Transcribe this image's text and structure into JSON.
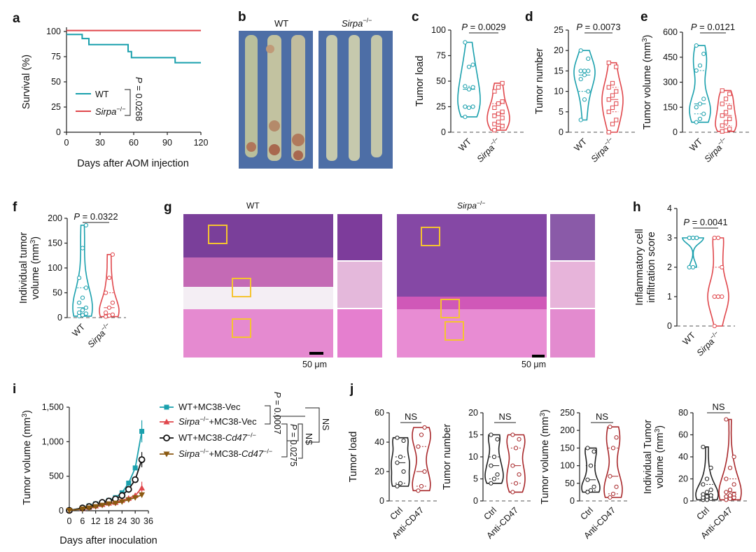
{
  "colors": {
    "wt": "#1aa0ad",
    "ko": "#e0474c",
    "ko_dark": "#a8282b",
    "mc38_vec_wt": "#1aa0ad",
    "mc38_vec_ko": "#e0474c",
    "cd47_wt": "#111111",
    "cd47_ko": "#8b5a12",
    "histo_box": "#f5c430"
  },
  "panels": {
    "a": {
      "letter": "a"
    },
    "b": {
      "letter": "b",
      "wt": "WT",
      "ko": "Sirpa",
      "sup": "−/−",
      "photo_bg": "#4a6fa8"
    },
    "c": {
      "letter": "c"
    },
    "d": {
      "letter": "d"
    },
    "e": {
      "letter": "e"
    },
    "f": {
      "letter": "f"
    },
    "g": {
      "letter": "g",
      "wt": "WT",
      "ko": "Sirpa",
      "sup": "−/−",
      "scale1": "50 μm",
      "scale2": "50 μm"
    },
    "h": {
      "letter": "h"
    },
    "i": {
      "letter": "i"
    },
    "j": {
      "letter": "j"
    }
  },
  "chart_data": [
    {
      "panel": "a",
      "type": "line",
      "xlabel": "Days after AOM injection",
      "ylabel": "Survival (%)",
      "xlim": [
        0,
        120
      ],
      "ylim": [
        0,
        100
      ],
      "xticks": [
        "0",
        "30",
        "60",
        "90",
        "120"
      ],
      "yticks": [
        "0",
        "25",
        "50",
        "75",
        "100"
      ],
      "series": [
        {
          "name": "WT",
          "color": "#1aa0ad",
          "steps": [
            [
              0,
              97
            ],
            [
              14,
              97
            ],
            [
              14,
              93
            ],
            [
              20,
              93
            ],
            [
              20,
              87
            ],
            [
              55,
              87
            ],
            [
              55,
              80
            ],
            [
              58,
              80
            ],
            [
              58,
              74
            ],
            [
              97,
              74
            ],
            [
              97,
              69
            ],
            [
              120,
              69
            ]
          ]
        },
        {
          "name": "Sirpa−/−",
          "color": "#e0474c",
          "steps": [
            [
              0,
              101
            ],
            [
              120,
              101
            ]
          ]
        }
      ],
      "stat": "P = 0.0268"
    },
    {
      "panel": "c",
      "type": "violin",
      "ylabel": "Tumor load",
      "ylim": [
        0,
        100
      ],
      "yticks": [
        "0",
        "25",
        "50",
        "75",
        "100"
      ],
      "categories": [
        "WT",
        "Sirpa−/−"
      ],
      "stat": "P = 0.0029",
      "series": [
        {
          "name": "WT",
          "values": [
            88,
            66,
            64,
            45,
            44,
            42,
            25,
            25,
            24,
            15
          ]
        },
        {
          "name": "Sirpa−/−",
          "values": [
            48,
            44,
            40,
            30,
            28,
            24,
            20,
            18,
            16,
            14,
            10,
            8,
            6,
            4,
            2
          ]
        }
      ]
    },
    {
      "panel": "d",
      "type": "violin",
      "ylabel": "Tumor number",
      "ylim": [
        0,
        25
      ],
      "yticks": [
        "0",
        "5",
        "10",
        "15",
        "20",
        "25"
      ],
      "categories": [
        "WT",
        "Sirpa−/−"
      ],
      "stat": "P = 0.0073",
      "series": [
        {
          "name": "WT",
          "values": [
            20,
            18,
            15,
            15,
            15,
            14,
            13,
            10,
            8,
            3
          ]
        },
        {
          "name": "Sirpa−/−",
          "values": [
            17,
            16,
            12,
            11,
            10,
            9,
            8,
            7,
            6,
            5,
            3,
            2,
            0
          ]
        }
      ]
    },
    {
      "panel": "e",
      "type": "violin",
      "ylabel": "Tumor volume (mm3)",
      "ylim": [
        0,
        600
      ],
      "yticks": [
        "0",
        "150",
        "300",
        "450",
        "600"
      ],
      "categories": [
        "WT",
        "Sirpa−/−"
      ],
      "stat": "P = 0.0121",
      "series": [
        {
          "name": "WT",
          "values": [
            520,
            470,
            400,
            370,
            200,
            170,
            150,
            110,
            80,
            60
          ]
        },
        {
          "name": "Sirpa−/−",
          "values": [
            250,
            230,
            200,
            170,
            150,
            120,
            100,
            80,
            60,
            40,
            20,
            10,
            5
          ]
        }
      ]
    },
    {
      "panel": "f",
      "type": "violin",
      "ylabel": "Individual tumor volume (mm3)",
      "ylim": [
        0,
        200
      ],
      "yticks": [
        "0",
        "50",
        "100",
        "150",
        "200"
      ],
      "categories": [
        "WT",
        "Sirpa−/−"
      ],
      "stat": "P = 0.0322",
      "series": [
        {
          "name": "WT",
          "values": [
            186,
            140,
            80,
            60,
            40,
            30,
            20,
            15,
            10,
            8,
            5,
            3
          ]
        },
        {
          "name": "Sirpa−/−",
          "values": [
            127,
            80,
            50,
            30,
            20,
            10,
            6,
            4,
            2
          ]
        }
      ]
    },
    {
      "panel": "h",
      "type": "violin",
      "ylabel": "Inflammatory cell infiltration score",
      "ylim": [
        0,
        4
      ],
      "yticks": [
        "0",
        "1",
        "2",
        "3",
        "4"
      ],
      "categories": [
        "WT",
        "Sirpa−/−"
      ],
      "stat": "P = 0.0041",
      "series": [
        {
          "name": "WT",
          "values": [
            3,
            3,
            3,
            3,
            3,
            3,
            2,
            2
          ]
        },
        {
          "name": "Sirpa−/−",
          "values": [
            3,
            3,
            2,
            1,
            1,
            1,
            1,
            0
          ]
        }
      ]
    },
    {
      "panel": "i",
      "type": "line",
      "xlabel": "Days after inoculation",
      "ylabel": "Tumor volume (mm3)",
      "xlim": [
        0,
        36
      ],
      "ylim": [
        0,
        1500
      ],
      "xticks": [
        "0",
        "6",
        "12",
        "18",
        "24",
        "30",
        "36"
      ],
      "yticks": [
        "0",
        "500",
        "1,000",
        "1,500"
      ],
      "x": [
        0,
        6,
        9,
        12,
        15,
        18,
        21,
        24,
        27,
        30,
        33
      ],
      "series": [
        {
          "name": "WT+MC38-Vec",
          "values": [
            5,
            40,
            70,
            100,
            120,
            150,
            190,
            260,
            400,
            620,
            1150
          ],
          "err": [
            5,
            10,
            12,
            15,
            20,
            25,
            30,
            40,
            60,
            120,
            160
          ]
        },
        {
          "name": "Sirpa−/−+MC38-Vec",
          "values": [
            5,
            30,
            50,
            70,
            90,
            110,
            120,
            150,
            180,
            220,
            330
          ],
          "err": [
            5,
            8,
            10,
            12,
            15,
            20,
            20,
            25,
            30,
            50,
            90
          ]
        },
        {
          "name": "WT+MC38-Cd47−/−",
          "values": [
            5,
            40,
            60,
            90,
            120,
            140,
            170,
            220,
            310,
            450,
            740
          ],
          "err": [
            5,
            10,
            12,
            15,
            20,
            25,
            30,
            40,
            60,
            90,
            110
          ]
        },
        {
          "name": "Sirpa−/−+MC38-Cd47−/−",
          "values": [
            5,
            25,
            40,
            60,
            80,
            100,
            110,
            130,
            160,
            190,
            230
          ],
          "err": [
            5,
            8,
            8,
            10,
            12,
            15,
            18,
            20,
            25,
            30,
            40
          ]
        }
      ],
      "legend_labels": [
        {
          "a": "WT+MC38-Vec",
          "i": "",
          "b": ""
        },
        {
          "a": "",
          "i": "Sirpa",
          "s": "−/−",
          "b": "+MC38-Vec"
        },
        {
          "a": "WT+MC38-",
          "i": "Cd47",
          "s": "−/−",
          "b": ""
        },
        {
          "a": "",
          "i": "Sirpa",
          "s": "−/−",
          "b": "+MC38-",
          "i2": "Cd47",
          "s2": "−/−"
        }
      ],
      "stats": [
        "P = 0.0007",
        "P = 0.0275",
        "NS",
        "NS"
      ]
    },
    {
      "panel": "j1",
      "type": "violin",
      "ylabel": "Tumor load",
      "ylim": [
        0,
        60
      ],
      "yticks": [
        "0",
        "20",
        "40",
        "60"
      ],
      "categories": [
        "Ctrl",
        "Anti-CD47"
      ],
      "stat": "NS",
      "series": [
        {
          "name": "Ctrl",
          "values": [
            43,
            41,
            30,
            26,
            20,
            12,
            10
          ]
        },
        {
          "name": "Anti-CD47",
          "values": [
            50,
            45,
            37,
            20,
            10,
            7
          ]
        }
      ]
    },
    {
      "panel": "j2",
      "type": "violin",
      "ylabel": "Tumor number",
      "ylim": [
        0,
        20
      ],
      "yticks": [
        "0",
        "5",
        "10",
        "15",
        "20"
      ],
      "categories": [
        "Ctrl",
        "Anti-CD47"
      ],
      "stat": "NS",
      "series": [
        {
          "name": "Ctrl",
          "values": [
            15,
            14,
            10,
            8,
            6,
            5,
            4
          ]
        },
        {
          "name": "Anti-CD47",
          "values": [
            15,
            14,
            12,
            8,
            6,
            4,
            2
          ]
        }
      ]
    },
    {
      "panel": "j3",
      "type": "violin",
      "ylabel": "Tumor volume (mm3)",
      "ylim": [
        0,
        250
      ],
      "yticks": [
        "0",
        "50",
        "100",
        "150",
        "200",
        "250"
      ],
      "categories": [
        "Ctrl",
        "Anti-CD47"
      ],
      "stat": "NS",
      "series": [
        {
          "name": "Ctrl",
          "values": [
            150,
            140,
            100,
            60,
            40,
            30,
            25
          ]
        },
        {
          "name": "Anti-CD47",
          "values": [
            210,
            180,
            150,
            70,
            40,
            20,
            10
          ]
        }
      ]
    },
    {
      "panel": "j4",
      "type": "violin",
      "ylabel": "Individual Tumor volume (mm3)",
      "ylim": [
        0,
        80
      ],
      "yticks": [
        "0",
        "20",
        "40",
        "60",
        "80"
      ],
      "categories": [
        "Ctrl",
        "Anti-CD47"
      ],
      "stat": "NS",
      "series": [
        {
          "name": "Ctrl",
          "values": [
            49,
            30,
            20,
            15,
            10,
            8,
            6,
            5,
            4,
            3,
            2,
            1,
            1
          ]
        },
        {
          "name": "Anti-CD47",
          "values": [
            74,
            40,
            30,
            20,
            15,
            10,
            8,
            6,
            5,
            4,
            3,
            2,
            1
          ]
        }
      ]
    }
  ]
}
